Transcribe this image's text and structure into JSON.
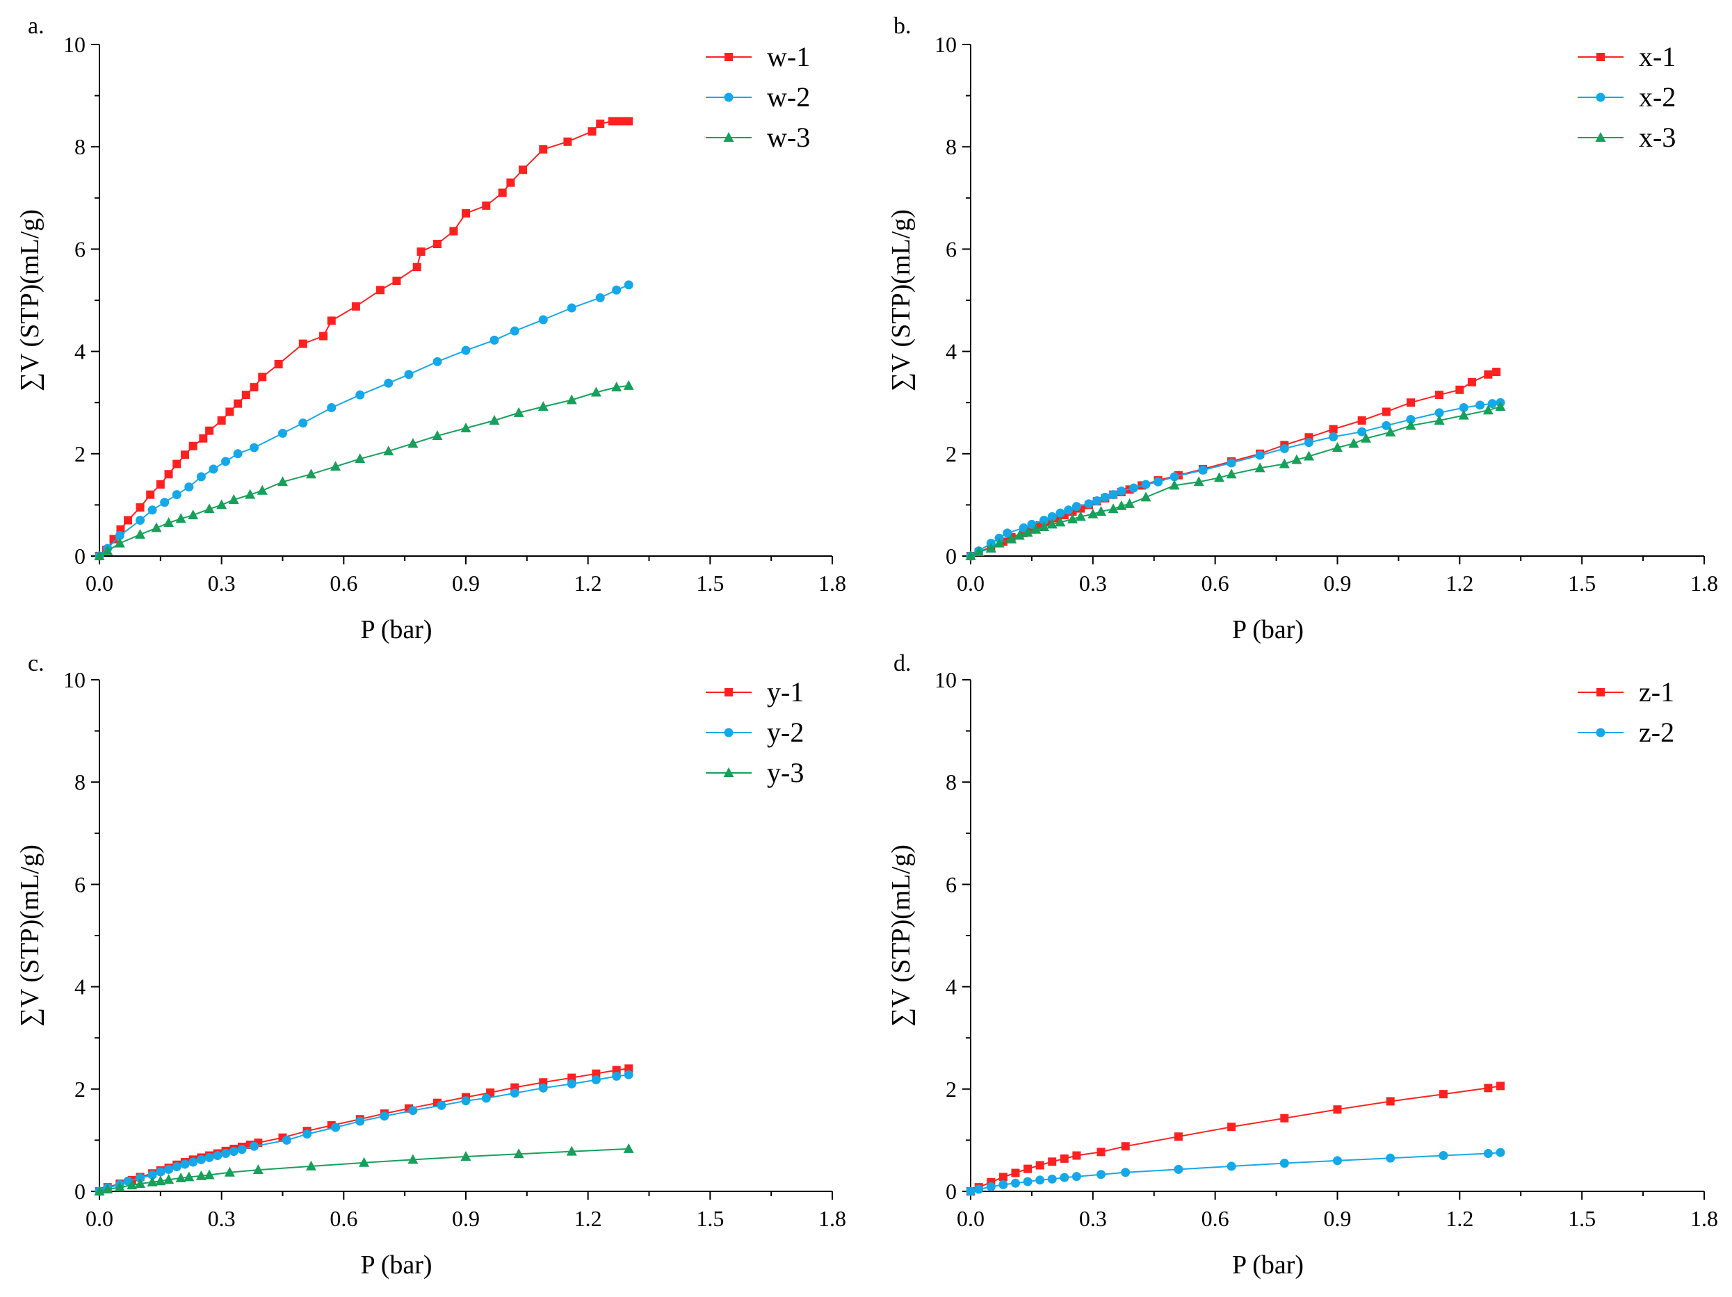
{
  "colors": {
    "series_1": "#ff2020",
    "series_2": "#14a8e8",
    "series_3": "#16a05a",
    "axis": "#000000"
  },
  "chart_data": [
    {
      "panel": "a.",
      "type": "line",
      "xlabel": "P (bar)",
      "ylabel": "∑V (STP)(mL/g)",
      "xlim": [
        0,
        1.8
      ],
      "ylim": [
        0,
        10
      ],
      "xticks": [
        "0.0",
        "0.3",
        "0.6",
        "0.9",
        "1.2",
        "1.5",
        "1.8"
      ],
      "yticks": [
        "0",
        "2",
        "4",
        "6",
        "8",
        "10"
      ],
      "legend_position": "top-right",
      "series": [
        {
          "name": "w-1",
          "marker": "square",
          "color": "#ff2020",
          "x": [
            0,
            0.017,
            0.035,
            0.052,
            0.07,
            0.1,
            0.125,
            0.15,
            0.17,
            0.19,
            0.21,
            0.23,
            0.255,
            0.27,
            0.3,
            0.32,
            0.34,
            0.36,
            0.38,
            0.4,
            0.44,
            0.5,
            0.55,
            0.57,
            0.63,
            0.69,
            0.73,
            0.78,
            0.79,
            0.83,
            0.87,
            0.9,
            0.95,
            0.99,
            1.01,
            1.04,
            1.09,
            1.15,
            1.21,
            1.23,
            1.26,
            1.28,
            1.3
          ],
          "y": [
            0,
            0.12,
            0.33,
            0.52,
            0.7,
            0.95,
            1.2,
            1.4,
            1.6,
            1.8,
            1.98,
            2.15,
            2.3,
            2.45,
            2.65,
            2.82,
            2.98,
            3.15,
            3.3,
            3.5,
            3.75,
            4.15,
            4.3,
            4.6,
            4.88,
            5.2,
            5.38,
            5.65,
            5.95,
            6.1,
            6.35,
            6.7,
            6.85,
            7.1,
            7.3,
            7.55,
            7.95,
            8.1,
            8.3,
            8.45,
            8.5,
            8.5,
            8.5
          ]
        },
        {
          "name": "w-2",
          "marker": "circle",
          "color": "#14a8e8",
          "x": [
            0,
            0.02,
            0.05,
            0.1,
            0.13,
            0.16,
            0.19,
            0.22,
            0.25,
            0.28,
            0.31,
            0.34,
            0.38,
            0.45,
            0.5,
            0.57,
            0.64,
            0.71,
            0.76,
            0.83,
            0.9,
            0.97,
            1.02,
            1.09,
            1.16,
            1.23,
            1.27,
            1.3
          ],
          "y": [
            0,
            0.15,
            0.4,
            0.7,
            0.9,
            1.05,
            1.2,
            1.35,
            1.55,
            1.7,
            1.85,
            2.0,
            2.12,
            2.4,
            2.6,
            2.9,
            3.15,
            3.38,
            3.55,
            3.8,
            4.02,
            4.22,
            4.4,
            4.62,
            4.85,
            5.05,
            5.2,
            5.3
          ]
        },
        {
          "name": "w-3",
          "marker": "triangle",
          "color": "#16a05a",
          "x": [
            0,
            0.02,
            0.05,
            0.1,
            0.14,
            0.17,
            0.2,
            0.23,
            0.27,
            0.3,
            0.33,
            0.37,
            0.4,
            0.45,
            0.52,
            0.58,
            0.64,
            0.71,
            0.77,
            0.83,
            0.9,
            0.97,
            1.03,
            1.09,
            1.16,
            1.22,
            1.27,
            1.3
          ],
          "y": [
            0,
            0.1,
            0.25,
            0.42,
            0.55,
            0.65,
            0.73,
            0.8,
            0.92,
            1.0,
            1.1,
            1.2,
            1.28,
            1.45,
            1.6,
            1.75,
            1.9,
            2.05,
            2.2,
            2.35,
            2.5,
            2.65,
            2.8,
            2.92,
            3.05,
            3.2,
            3.3,
            3.33
          ]
        }
      ]
    },
    {
      "panel": "b.",
      "type": "line",
      "xlabel": "P (bar)",
      "ylabel": "∑V (STP)(mL/g)",
      "xlim": [
        0,
        1.8
      ],
      "ylim": [
        0,
        10
      ],
      "xticks": [
        "0.0",
        "0.3",
        "0.6",
        "0.9",
        "1.2",
        "1.5",
        "1.8"
      ],
      "yticks": [
        "0",
        "2",
        "4",
        "6",
        "8",
        "10"
      ],
      "legend_position": "top-right",
      "series": [
        {
          "name": "x-1",
          "marker": "square",
          "color": "#ff2020",
          "x": [
            0,
            0.02,
            0.05,
            0.08,
            0.1,
            0.13,
            0.15,
            0.17,
            0.19,
            0.21,
            0.23,
            0.25,
            0.27,
            0.29,
            0.31,
            0.33,
            0.35,
            0.37,
            0.39,
            0.42,
            0.46,
            0.51,
            0.57,
            0.64,
            0.71,
            0.77,
            0.83,
            0.89,
            0.96,
            1.02,
            1.08,
            1.15,
            1.2,
            1.23,
            1.27,
            1.29
          ],
          "y": [
            0,
            0.08,
            0.18,
            0.28,
            0.37,
            0.45,
            0.52,
            0.6,
            0.67,
            0.74,
            0.8,
            0.87,
            0.93,
            1.0,
            1.07,
            1.13,
            1.2,
            1.25,
            1.3,
            1.38,
            1.48,
            1.58,
            1.7,
            1.85,
            2.0,
            2.17,
            2.32,
            2.48,
            2.65,
            2.82,
            3.0,
            3.15,
            3.25,
            3.4,
            3.55,
            3.6
          ]
        },
        {
          "name": "x-2",
          "marker": "circle",
          "color": "#14a8e8",
          "x": [
            0,
            0.02,
            0.05,
            0.07,
            0.09,
            0.13,
            0.15,
            0.18,
            0.2,
            0.22,
            0.24,
            0.26,
            0.29,
            0.31,
            0.33,
            0.35,
            0.37,
            0.4,
            0.43,
            0.46,
            0.5,
            0.57,
            0.64,
            0.71,
            0.77,
            0.83,
            0.89,
            0.96,
            1.02,
            1.08,
            1.15,
            1.21,
            1.25,
            1.28,
            1.3
          ],
          "y": [
            0,
            0.1,
            0.25,
            0.35,
            0.45,
            0.55,
            0.62,
            0.7,
            0.77,
            0.84,
            0.9,
            0.97,
            1.02,
            1.08,
            1.15,
            1.2,
            1.27,
            1.33,
            1.4,
            1.45,
            1.55,
            1.68,
            1.82,
            1.97,
            2.1,
            2.22,
            2.33,
            2.43,
            2.55,
            2.67,
            2.8,
            2.9,
            2.95,
            2.98,
            3.0
          ]
        },
        {
          "name": "x-3",
          "marker": "triangle",
          "color": "#16a05a",
          "x": [
            0,
            0.02,
            0.05,
            0.07,
            0.1,
            0.12,
            0.14,
            0.16,
            0.18,
            0.2,
            0.22,
            0.25,
            0.27,
            0.3,
            0.32,
            0.35,
            0.37,
            0.39,
            0.43,
            0.5,
            0.56,
            0.61,
            0.64,
            0.71,
            0.77,
            0.8,
            0.83,
            0.9,
            0.94,
            0.97,
            1.03,
            1.08,
            1.15,
            1.21,
            1.27,
            1.3
          ],
          "y": [
            0,
            0.08,
            0.15,
            0.25,
            0.33,
            0.4,
            0.46,
            0.52,
            0.57,
            0.62,
            0.66,
            0.72,
            0.77,
            0.82,
            0.87,
            0.92,
            0.98,
            1.02,
            1.15,
            1.38,
            1.45,
            1.53,
            1.6,
            1.72,
            1.8,
            1.88,
            1.95,
            2.12,
            2.2,
            2.3,
            2.42,
            2.55,
            2.65,
            2.75,
            2.85,
            2.92
          ]
        }
      ]
    },
    {
      "panel": "c.",
      "type": "line",
      "xlabel": "P (bar)",
      "ylabel": "∑V (STP)(mL/g)",
      "xlim": [
        0,
        1.8
      ],
      "ylim": [
        0,
        10
      ],
      "xticks": [
        "0.0",
        "0.3",
        "0.6",
        "0.9",
        "1.2",
        "1.5",
        "1.8"
      ],
      "yticks": [
        "0",
        "2",
        "4",
        "6",
        "8",
        "10"
      ],
      "legend_position": "top-right",
      "series": [
        {
          "name": "y-1",
          "marker": "square",
          "color": "#ff2020",
          "x": [
            0,
            0.02,
            0.05,
            0.08,
            0.1,
            0.13,
            0.15,
            0.17,
            0.19,
            0.21,
            0.23,
            0.25,
            0.27,
            0.29,
            0.31,
            0.33,
            0.35,
            0.37,
            0.39,
            0.45,
            0.51,
            0.57,
            0.64,
            0.7,
            0.76,
            0.83,
            0.9,
            0.96,
            1.02,
            1.09,
            1.16,
            1.22,
            1.27,
            1.3
          ],
          "y": [
            0,
            0.08,
            0.15,
            0.22,
            0.28,
            0.35,
            0.41,
            0.46,
            0.52,
            0.57,
            0.62,
            0.66,
            0.7,
            0.74,
            0.79,
            0.83,
            0.87,
            0.91,
            0.95,
            1.05,
            1.18,
            1.29,
            1.41,
            1.52,
            1.62,
            1.73,
            1.84,
            1.93,
            2.03,
            2.13,
            2.22,
            2.3,
            2.37,
            2.4
          ]
        },
        {
          "name": "y-2",
          "marker": "circle",
          "color": "#14a8e8",
          "x": [
            0,
            0.02,
            0.05,
            0.07,
            0.1,
            0.13,
            0.15,
            0.17,
            0.19,
            0.21,
            0.23,
            0.25,
            0.27,
            0.29,
            0.31,
            0.33,
            0.35,
            0.38,
            0.46,
            0.51,
            0.58,
            0.64,
            0.7,
            0.77,
            0.84,
            0.9,
            0.95,
            1.02,
            1.09,
            1.16,
            1.22,
            1.27,
            1.3
          ],
          "y": [
            0,
            0.07,
            0.13,
            0.2,
            0.26,
            0.32,
            0.38,
            0.43,
            0.48,
            0.53,
            0.57,
            0.62,
            0.66,
            0.7,
            0.74,
            0.78,
            0.82,
            0.88,
            1.0,
            1.12,
            1.25,
            1.37,
            1.47,
            1.58,
            1.68,
            1.77,
            1.82,
            1.92,
            2.02,
            2.1,
            2.18,
            2.25,
            2.28
          ]
        },
        {
          "name": "y-3",
          "marker": "triangle",
          "color": "#16a05a",
          "x": [
            0,
            0.02,
            0.05,
            0.08,
            0.1,
            0.13,
            0.15,
            0.17,
            0.2,
            0.22,
            0.25,
            0.27,
            0.32,
            0.39,
            0.52,
            0.65,
            0.77,
            0.9,
            1.03,
            1.16,
            1.3
          ],
          "y": [
            0,
            0.04,
            0.08,
            0.12,
            0.15,
            0.18,
            0.2,
            0.23,
            0.26,
            0.28,
            0.3,
            0.32,
            0.37,
            0.42,
            0.49,
            0.56,
            0.62,
            0.68,
            0.73,
            0.78,
            0.83
          ]
        }
      ]
    },
    {
      "panel": "d.",
      "type": "line",
      "xlabel": "P (bar)",
      "ylabel": "∑V (STP)(mL/g)",
      "xlim": [
        0,
        1.8
      ],
      "ylim": [
        0,
        10
      ],
      "xticks": [
        "0.0",
        "0.3",
        "0.6",
        "0.9",
        "1.2",
        "1.5",
        "1.8"
      ],
      "yticks": [
        "0",
        "2",
        "4",
        "6",
        "8",
        "10"
      ],
      "legend_position": "top-right",
      "series": [
        {
          "name": "z-1",
          "marker": "square",
          "color": "#ff2020",
          "x": [
            0,
            0.02,
            0.05,
            0.08,
            0.11,
            0.14,
            0.17,
            0.2,
            0.23,
            0.26,
            0.32,
            0.38,
            0.51,
            0.64,
            0.77,
            0.9,
            1.03,
            1.16,
            1.27,
            1.3
          ],
          "y": [
            0,
            0.08,
            0.18,
            0.28,
            0.36,
            0.44,
            0.51,
            0.58,
            0.64,
            0.7,
            0.77,
            0.88,
            1.07,
            1.26,
            1.43,
            1.6,
            1.76,
            1.9,
            2.02,
            2.06
          ]
        },
        {
          "name": "z-2",
          "marker": "circle",
          "color": "#14a8e8",
          "x": [
            0,
            0.02,
            0.05,
            0.08,
            0.11,
            0.14,
            0.17,
            0.2,
            0.23,
            0.26,
            0.32,
            0.38,
            0.51,
            0.64,
            0.77,
            0.9,
            1.03,
            1.16,
            1.27,
            1.3
          ],
          "y": [
            0,
            0.04,
            0.09,
            0.13,
            0.16,
            0.19,
            0.22,
            0.24,
            0.27,
            0.29,
            0.33,
            0.37,
            0.43,
            0.49,
            0.55,
            0.6,
            0.65,
            0.7,
            0.74,
            0.76
          ]
        }
      ]
    }
  ]
}
